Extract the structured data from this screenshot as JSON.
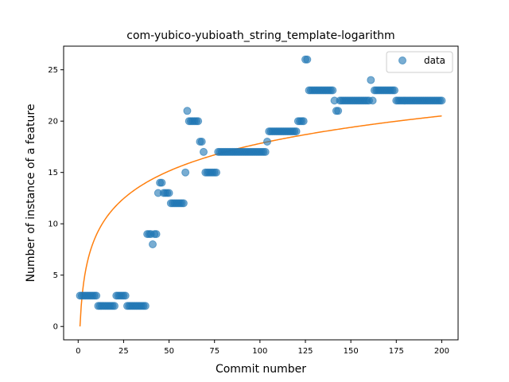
{
  "chart_data": {
    "type": "scatter",
    "title": "com-yubico-yubioath_string_template-logarithm",
    "xlabel": "Commit number",
    "ylabel": "Number of instance of a feature",
    "xlim": [
      -8,
      209
    ],
    "ylim": [
      -1.3,
      27.3
    ],
    "xticks": [
      0,
      25,
      50,
      75,
      100,
      125,
      150,
      175,
      200
    ],
    "yticks": [
      0,
      5,
      10,
      15,
      20,
      25
    ],
    "grid": false,
    "legend": {
      "location": "top-right",
      "entries": [
        "data"
      ]
    },
    "colors": {
      "data": "#1f77b4",
      "fit": "#ff7f0e"
    },
    "series": [
      {
        "name": "data",
        "kind": "scatter",
        "points": [
          [
            1,
            3
          ],
          [
            2,
            3
          ],
          [
            3,
            3
          ],
          [
            4,
            3
          ],
          [
            5,
            3
          ],
          [
            6,
            3
          ],
          [
            7,
            3
          ],
          [
            8,
            3
          ],
          [
            9,
            3
          ],
          [
            10,
            3
          ],
          [
            11,
            2
          ],
          [
            12,
            2
          ],
          [
            13,
            2
          ],
          [
            14,
            2
          ],
          [
            15,
            2
          ],
          [
            16,
            2
          ],
          [
            17,
            2
          ],
          [
            18,
            2
          ],
          [
            19,
            2
          ],
          [
            20,
            2
          ],
          [
            21,
            3
          ],
          [
            22,
            3
          ],
          [
            23,
            3
          ],
          [
            24,
            3
          ],
          [
            25,
            3
          ],
          [
            26,
            3
          ],
          [
            27,
            2
          ],
          [
            28,
            2
          ],
          [
            29,
            2
          ],
          [
            30,
            2
          ],
          [
            31,
            2
          ],
          [
            32,
            2
          ],
          [
            33,
            2
          ],
          [
            34,
            2
          ],
          [
            35,
            2
          ],
          [
            36,
            2
          ],
          [
            37,
            2
          ],
          [
            38,
            9
          ],
          [
            39,
            9
          ],
          [
            40,
            9
          ],
          [
            41,
            8
          ],
          [
            42,
            9
          ],
          [
            43,
            9
          ],
          [
            44,
            13
          ],
          [
            45,
            14
          ],
          [
            46,
            14
          ],
          [
            47,
            13
          ],
          [
            48,
            13
          ],
          [
            49,
            13
          ],
          [
            50,
            13
          ],
          [
            51,
            12
          ],
          [
            52,
            12
          ],
          [
            53,
            12
          ],
          [
            54,
            12
          ],
          [
            55,
            12
          ],
          [
            56,
            12
          ],
          [
            57,
            12
          ],
          [
            58,
            12
          ],
          [
            59,
            15
          ],
          [
            60,
            21
          ],
          [
            61,
            20
          ],
          [
            62,
            20
          ],
          [
            63,
            20
          ],
          [
            64,
            20
          ],
          [
            65,
            20
          ],
          [
            66,
            20
          ],
          [
            67,
            18
          ],
          [
            68,
            18
          ],
          [
            69,
            17
          ],
          [
            70,
            15
          ],
          [
            71,
            15
          ],
          [
            72,
            15
          ],
          [
            73,
            15
          ],
          [
            74,
            15
          ],
          [
            75,
            15
          ],
          [
            76,
            15
          ],
          [
            77,
            17
          ],
          [
            78,
            17
          ],
          [
            79,
            17
          ],
          [
            80,
            17
          ],
          [
            81,
            17
          ],
          [
            82,
            17
          ],
          [
            83,
            17
          ],
          [
            84,
            17
          ],
          [
            85,
            17
          ],
          [
            86,
            17
          ],
          [
            87,
            17
          ],
          [
            88,
            17
          ],
          [
            89,
            17
          ],
          [
            90,
            17
          ],
          [
            91,
            17
          ],
          [
            92,
            17
          ],
          [
            93,
            17
          ],
          [
            94,
            17
          ],
          [
            95,
            17
          ],
          [
            96,
            17
          ],
          [
            97,
            17
          ],
          [
            98,
            17
          ],
          [
            99,
            17
          ],
          [
            100,
            17
          ],
          [
            101,
            17
          ],
          [
            102,
            17
          ],
          [
            103,
            17
          ],
          [
            104,
            18
          ],
          [
            105,
            19
          ],
          [
            106,
            19
          ],
          [
            107,
            19
          ],
          [
            108,
            19
          ],
          [
            109,
            19
          ],
          [
            110,
            19
          ],
          [
            111,
            19
          ],
          [
            112,
            19
          ],
          [
            113,
            19
          ],
          [
            114,
            19
          ],
          [
            115,
            19
          ],
          [
            116,
            19
          ],
          [
            117,
            19
          ],
          [
            118,
            19
          ],
          [
            119,
            19
          ],
          [
            120,
            19
          ],
          [
            121,
            20
          ],
          [
            122,
            20
          ],
          [
            123,
            20
          ],
          [
            124,
            20
          ],
          [
            125,
            26
          ],
          [
            126,
            26
          ],
          [
            127,
            23
          ],
          [
            128,
            23
          ],
          [
            129,
            23
          ],
          [
            130,
            23
          ],
          [
            131,
            23
          ],
          [
            132,
            23
          ],
          [
            133,
            23
          ],
          [
            134,
            23
          ],
          [
            135,
            23
          ],
          [
            136,
            23
          ],
          [
            137,
            23
          ],
          [
            138,
            23
          ],
          [
            139,
            23
          ],
          [
            140,
            23
          ],
          [
            141,
            22
          ],
          [
            142,
            21
          ],
          [
            143,
            21
          ],
          [
            144,
            22
          ],
          [
            145,
            22
          ],
          [
            146,
            22
          ],
          [
            147,
            22
          ],
          [
            148,
            22
          ],
          [
            149,
            22
          ],
          [
            150,
            22
          ],
          [
            151,
            22
          ],
          [
            152,
            22
          ],
          [
            153,
            22
          ],
          [
            154,
            22
          ],
          [
            155,
            22
          ],
          [
            156,
            22
          ],
          [
            157,
            22
          ],
          [
            158,
            22
          ],
          [
            159,
            22
          ],
          [
            160,
            22
          ],
          [
            161,
            24
          ],
          [
            162,
            22
          ],
          [
            163,
            23
          ],
          [
            164,
            23
          ],
          [
            165,
            23
          ],
          [
            166,
            23
          ],
          [
            167,
            23
          ],
          [
            168,
            23
          ],
          [
            169,
            23
          ],
          [
            170,
            23
          ],
          [
            171,
            23
          ],
          [
            172,
            23
          ],
          [
            173,
            23
          ],
          [
            174,
            23
          ],
          [
            175,
            22
          ],
          [
            176,
            22
          ],
          [
            177,
            22
          ],
          [
            178,
            22
          ],
          [
            179,
            22
          ],
          [
            180,
            22
          ],
          [
            181,
            22
          ],
          [
            182,
            22
          ],
          [
            183,
            22
          ],
          [
            184,
            22
          ],
          [
            185,
            22
          ],
          [
            186,
            22
          ],
          [
            187,
            22
          ],
          [
            188,
            22
          ],
          [
            189,
            22
          ],
          [
            190,
            22
          ],
          [
            191,
            22
          ],
          [
            192,
            22
          ],
          [
            193,
            22
          ],
          [
            194,
            22
          ],
          [
            195,
            22
          ],
          [
            196,
            22
          ],
          [
            197,
            22
          ],
          [
            198,
            22
          ],
          [
            199,
            22
          ],
          [
            200,
            22
          ]
        ]
      },
      {
        "kind": "line",
        "function": "a*ln(x)",
        "a": 3.87,
        "x_range": [
          1,
          200
        ]
      }
    ]
  }
}
